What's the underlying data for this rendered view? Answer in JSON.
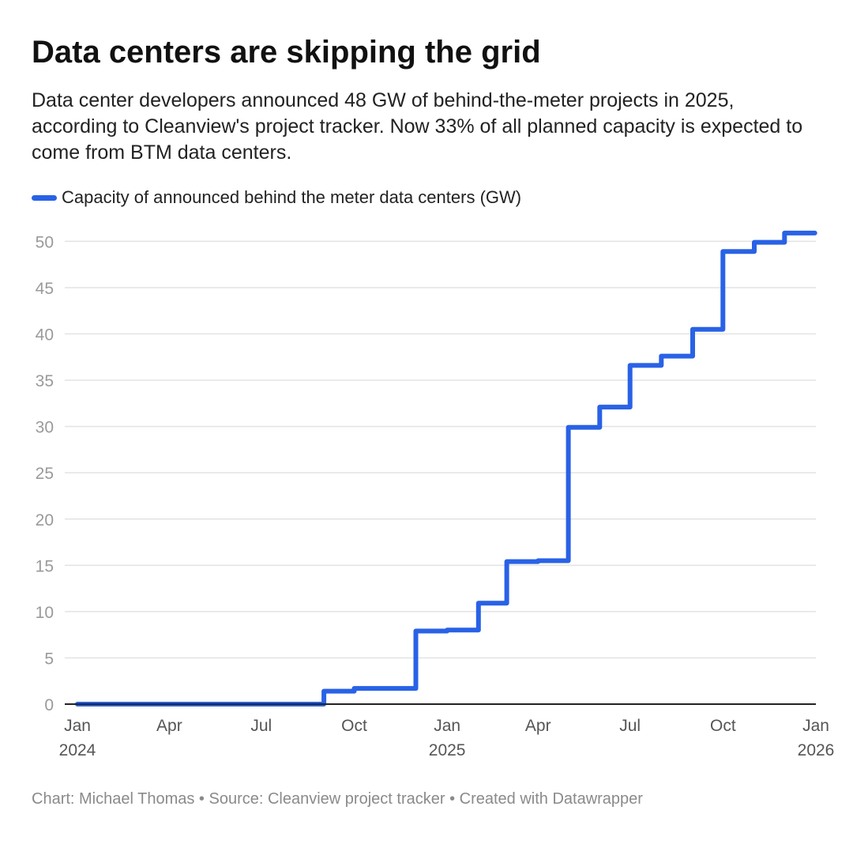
{
  "header": {
    "title": "Data centers are skipping the grid",
    "subtitle": "Data center developers announced 48 GW of behind-the-meter projects in 2025, according to Cleanview's project tracker. Now 33% of all planned capacity is expected to come from BTM data centers."
  },
  "colors": {
    "series": "#2962e6",
    "grid": "#e3e3e3",
    "axis": "#222222",
    "tick_y": "#9a9a9a",
    "tick_x": "#555555",
    "footer": "#8a8a8a"
  },
  "chart_data": {
    "type": "line",
    "step": true,
    "title": "Data centers are skipping the grid",
    "xlabel": "",
    "ylabel": "",
    "ylim": [
      0,
      52
    ],
    "yticks": [
      0,
      5,
      10,
      15,
      20,
      25,
      30,
      35,
      40,
      45,
      50
    ],
    "xlim": [
      "2024-01-01",
      "2026-01-01"
    ],
    "xticks": [
      {
        "date": "2024-01-01",
        "label": "Jan",
        "year": "2024"
      },
      {
        "date": "2024-04-01",
        "label": "Apr",
        "year": ""
      },
      {
        "date": "2024-07-01",
        "label": "Jul",
        "year": ""
      },
      {
        "date": "2024-10-01",
        "label": "Oct",
        "year": ""
      },
      {
        "date": "2025-01-01",
        "label": "Jan",
        "year": "2025"
      },
      {
        "date": "2025-04-01",
        "label": "Apr",
        "year": ""
      },
      {
        "date": "2025-07-01",
        "label": "Jul",
        "year": ""
      },
      {
        "date": "2025-10-01",
        "label": "Oct",
        "year": ""
      },
      {
        "date": "2026-01-01",
        "label": "Jan",
        "year": "2026"
      }
    ],
    "grid": true,
    "legend": "top-left",
    "series": [
      {
        "name": "Capacity of announced behind the meter data centers (GW)",
        "points": [
          {
            "date": "2024-01-01",
            "value": 0
          },
          {
            "date": "2024-09-01",
            "value": 1.4
          },
          {
            "date": "2024-10-01",
            "value": 1.7
          },
          {
            "date": "2024-12-01",
            "value": 7.9
          },
          {
            "date": "2025-01-01",
            "value": 8.0
          },
          {
            "date": "2025-02-01",
            "value": 10.9
          },
          {
            "date": "2025-03-01",
            "value": 15.4
          },
          {
            "date": "2025-04-01",
            "value": 15.5
          },
          {
            "date": "2025-05-01",
            "value": 29.9
          },
          {
            "date": "2025-06-01",
            "value": 32.1
          },
          {
            "date": "2025-07-01",
            "value": 36.6
          },
          {
            "date": "2025-08-01",
            "value": 37.6
          },
          {
            "date": "2025-09-01",
            "value": 40.5
          },
          {
            "date": "2025-10-01",
            "value": 48.9
          },
          {
            "date": "2025-11-01",
            "value": 49.9
          },
          {
            "date": "2025-12-01",
            "value": 50.9
          },
          {
            "date": "2025-12-31",
            "value": 50.9
          }
        ]
      }
    ]
  },
  "footer": {
    "credit": "Chart: Michael Thomas • Source: Cleanview project tracker • Created with Datawrapper"
  }
}
